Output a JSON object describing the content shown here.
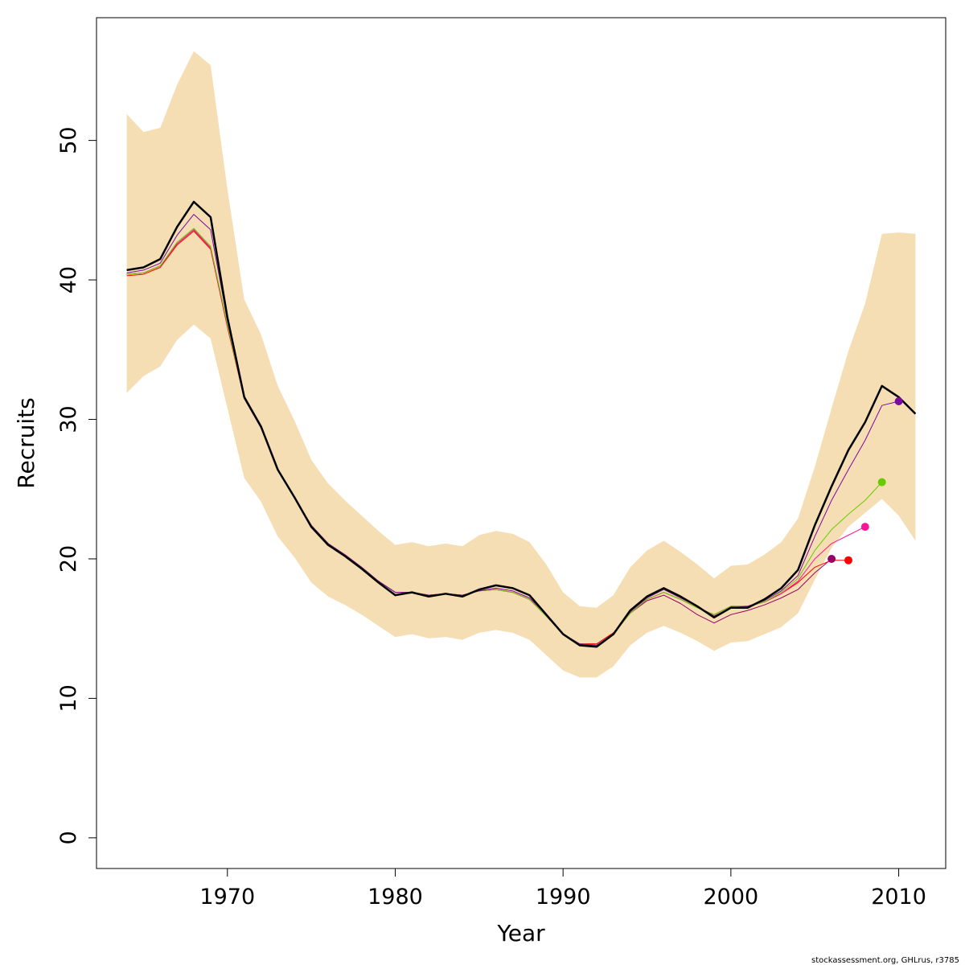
{
  "chart_data": {
    "type": "line",
    "title": "",
    "xlabel": "Year",
    "ylabel": "Recruits",
    "xlim": [
      1962.2,
      2012.8
    ],
    "ylim": [
      -2.2,
      58.8
    ],
    "xticks": [
      1970,
      1980,
      1990,
      2000,
      2010
    ],
    "yticks": [
      0,
      10,
      20,
      30,
      40,
      50
    ],
    "grid": false,
    "legend": "none",
    "colors": {
      "band": "#f5deb3",
      "final": "#000000",
      "peel_2010": "#7b0aa0",
      "peel_2009": "#66cc00",
      "peel_2008": "#ff1493",
      "peel_2007": "#ff0000",
      "peel_2006": "#990066"
    },
    "x": [
      1964,
      1965,
      1966,
      1967,
      1968,
      1969,
      1970,
      1971,
      1972,
      1973,
      1974,
      1975,
      1976,
      1977,
      1978,
      1979,
      1980,
      1981,
      1982,
      1983,
      1984,
      1985,
      1986,
      1987,
      1988,
      1989,
      1990,
      1991,
      1992,
      1993,
      1994,
      1995,
      1996,
      1997,
      1998,
      1999,
      2000,
      2001,
      2002,
      2003,
      2004,
      2005,
      2006,
      2007,
      2008,
      2009,
      2010,
      2011
    ],
    "band_upper": [
      51.9,
      50.6,
      50.9,
      54.0,
      56.4,
      55.4,
      46.5,
      38.6,
      36.1,
      32.4,
      29.9,
      27.1,
      25.4,
      24.2,
      23.1,
      22.0,
      21.0,
      21.2,
      20.9,
      21.1,
      20.9,
      21.7,
      22.0,
      21.8,
      21.2,
      19.6,
      17.6,
      16.6,
      16.5,
      17.4,
      19.4,
      20.6,
      21.3,
      20.5,
      19.6,
      18.6,
      19.5,
      19.6,
      20.3,
      21.2,
      22.9,
      26.6,
      30.8,
      34.9,
      38.3,
      43.3,
      43.4,
      43.3
    ],
    "band_lower": [
      31.9,
      33.1,
      33.8,
      35.7,
      36.8,
      35.8,
      30.8,
      25.8,
      24.1,
      21.6,
      20.1,
      18.3,
      17.3,
      16.7,
      16.0,
      15.2,
      14.4,
      14.6,
      14.3,
      14.4,
      14.2,
      14.7,
      14.9,
      14.7,
      14.2,
      13.1,
      12.0,
      11.5,
      11.5,
      12.3,
      13.8,
      14.7,
      15.2,
      14.7,
      14.1,
      13.4,
      14.0,
      14.1,
      14.6,
      15.1,
      16.1,
      18.5,
      20.8,
      22.3,
      23.3,
      24.3,
      23.1,
      21.3
    ],
    "series": [
      {
        "name": "",
        "color": "#000000",
        "width": 2.5,
        "end_marker": false,
        "x": [
          1964,
          1965,
          1966,
          1967,
          1968,
          1969,
          1970,
          1971,
          1972,
          1973,
          1974,
          1975,
          1976,
          1977,
          1978,
          1979,
          1980,
          1981,
          1982,
          1983,
          1984,
          1985,
          1986,
          1987,
          1988,
          1989,
          1990,
          1991,
          1992,
          1993,
          1994,
          1995,
          1996,
          1997,
          1998,
          1999,
          2000,
          2001,
          2002,
          2003,
          2004,
          2005,
          2006,
          2007,
          2008,
          2009,
          2010,
          2011
        ],
        "values": [
          40.7,
          40.9,
          41.5,
          43.8,
          45.6,
          44.5,
          37.3,
          31.6,
          29.5,
          26.4,
          24.4,
          22.3,
          21.0,
          20.2,
          19.3,
          18.3,
          17.4,
          17.6,
          17.3,
          17.5,
          17.3,
          17.8,
          18.1,
          17.9,
          17.4,
          16.0,
          14.6,
          13.8,
          13.7,
          14.6,
          16.3,
          17.3,
          17.9,
          17.3,
          16.6,
          15.8,
          16.5,
          16.5,
          17.1,
          17.9,
          19.2,
          22.4,
          25.2,
          27.8,
          29.8,
          32.4,
          31.6,
          30.4
        ]
      },
      {
        "name": "",
        "color": "#7b0aa0",
        "width": 1,
        "end_marker": true,
        "x": [
          1964,
          1965,
          1966,
          1967,
          1968,
          1969,
          1970,
          1971,
          1972,
          1973,
          1974,
          1975,
          1976,
          1977,
          1978,
          1979,
          1980,
          1981,
          1982,
          1983,
          1984,
          1985,
          1986,
          1987,
          1988,
          1989,
          1990,
          1991,
          1992,
          1993,
          1994,
          1995,
          1996,
          1997,
          1998,
          1999,
          2000,
          2001,
          2002,
          2003,
          2004,
          2005,
          2006,
          2007,
          2008,
          2009,
          2010
        ],
        "values": [
          40.5,
          40.7,
          41.2,
          43.2,
          44.7,
          43.6,
          37.1,
          31.5,
          29.4,
          26.4,
          24.4,
          22.4,
          21.1,
          20.3,
          19.4,
          18.4,
          17.6,
          17.6,
          17.4,
          17.5,
          17.4,
          17.7,
          17.9,
          17.7,
          17.2,
          16.0,
          14.6,
          13.9,
          13.8,
          14.6,
          16.2,
          17.2,
          17.8,
          17.2,
          16.6,
          15.9,
          16.5,
          16.6,
          17.0,
          17.7,
          18.8,
          21.6,
          24.2,
          26.4,
          28.5,
          31.0,
          31.3
        ]
      },
      {
        "name": "",
        "color": "#66cc00",
        "width": 1,
        "end_marker": true,
        "x": [
          1964,
          1965,
          1966,
          1967,
          1968,
          1969,
          1970,
          1971,
          1972,
          1973,
          1974,
          1975,
          1976,
          1977,
          1978,
          1979,
          1980,
          1981,
          1982,
          1983,
          1984,
          1985,
          1986,
          1987,
          1988,
          1989,
          1990,
          1991,
          1992,
          1993,
          1994,
          1995,
          1996,
          1997,
          1998,
          1999,
          2000,
          2001,
          2002,
          2003,
          2004,
          2005,
          2006,
          2007,
          2008,
          2009
        ],
        "values": [
          40.4,
          40.5,
          41.0,
          42.7,
          43.7,
          42.4,
          36.8,
          31.5,
          29.4,
          26.4,
          24.4,
          22.4,
          21.1,
          20.3,
          19.4,
          18.4,
          17.6,
          17.6,
          17.4,
          17.5,
          17.4,
          17.7,
          17.8,
          17.6,
          17.1,
          15.9,
          14.6,
          13.9,
          13.8,
          14.6,
          16.1,
          17.1,
          17.6,
          17.1,
          16.5,
          16.0,
          16.6,
          16.6,
          16.9,
          17.6,
          18.6,
          20.6,
          22.1,
          23.2,
          24.2,
          25.5
        ]
      },
      {
        "name": "",
        "color": "#ff1493",
        "width": 1,
        "end_marker": true,
        "x": [
          1964,
          1965,
          1966,
          1967,
          1968,
          1969,
          1970,
          1971,
          1972,
          1973,
          1974,
          1975,
          1976,
          1977,
          1978,
          1979,
          1980,
          1981,
          1982,
          1983,
          1984,
          1985,
          1986,
          1987,
          1988,
          1989,
          1990,
          1991,
          1992,
          1993,
          1994,
          1995,
          1996,
          1997,
          1998,
          1999,
          2000,
          2001,
          2002,
          2003,
          2004,
          2005,
          2006,
          2007,
          2008
        ],
        "values": [
          40.4,
          40.5,
          41.0,
          42.6,
          43.6,
          42.3,
          36.7,
          31.5,
          29.4,
          26.4,
          24.4,
          22.4,
          21.1,
          20.3,
          19.4,
          18.4,
          17.6,
          17.6,
          17.4,
          17.5,
          17.4,
          17.7,
          17.8,
          17.6,
          17.1,
          15.9,
          14.6,
          13.9,
          13.8,
          14.6,
          16.1,
          17.1,
          17.6,
          17.1,
          16.5,
          16.0,
          16.6,
          16.6,
          16.9,
          17.5,
          18.4,
          20.0,
          21.1,
          21.7,
          22.3
        ]
      },
      {
        "name": "",
        "color": "#ff0000",
        "width": 1,
        "end_marker": true,
        "x": [
          1964,
          1965,
          1966,
          1967,
          1968,
          1969,
          1970,
          1971,
          1972,
          1973,
          1974,
          1975,
          1976,
          1977,
          1978,
          1979,
          1980,
          1981,
          1982,
          1983,
          1984,
          1985,
          1986,
          1987,
          1988,
          1989,
          1990,
          1991,
          1992,
          1993,
          1994,
          1995,
          1996,
          1997,
          1998,
          1999,
          2000,
          2001,
          2002,
          2003,
          2004,
          2005,
          2006,
          2007
        ],
        "values": [
          40.3,
          40.4,
          40.9,
          42.5,
          43.5,
          42.2,
          36.6,
          31.5,
          29.4,
          26.4,
          24.4,
          22.4,
          21.1,
          20.3,
          19.4,
          18.4,
          17.6,
          17.6,
          17.4,
          17.5,
          17.4,
          17.7,
          17.8,
          17.6,
          17.1,
          15.9,
          14.6,
          13.9,
          13.9,
          14.7,
          16.1,
          17.1,
          17.6,
          17.1,
          16.5,
          16.0,
          16.6,
          16.6,
          16.9,
          17.5,
          18.3,
          19.4,
          19.9,
          19.9
        ]
      },
      {
        "name": "",
        "color": "#990066",
        "width": 1,
        "end_marker": true,
        "x": [
          1964,
          1965,
          1966,
          1967,
          1968,
          1969,
          1970,
          1971,
          1972,
          1973,
          1974,
          1975,
          1976,
          1977,
          1978,
          1979,
          1980,
          1981,
          1982,
          1983,
          1984,
          1985,
          1986,
          1987,
          1988,
          1989,
          1990,
          1991,
          1992,
          1993,
          1994,
          1995,
          1996,
          1997,
          1998,
          1999,
          2000,
          2001,
          2002,
          2003,
          2004,
          2005,
          2006
        ],
        "values": [
          40.4,
          40.5,
          41.0,
          42.6,
          43.6,
          42.3,
          36.7,
          31.5,
          29.4,
          26.4,
          24.4,
          22.4,
          21.1,
          20.3,
          19.4,
          18.4,
          17.6,
          17.6,
          17.4,
          17.5,
          17.4,
          17.7,
          17.8,
          17.6,
          17.1,
          15.9,
          14.6,
          13.9,
          13.9,
          14.7,
          16.1,
          17.0,
          17.4,
          16.8,
          16.0,
          15.4,
          16.0,
          16.3,
          16.7,
          17.2,
          17.8,
          19.0,
          20.0
        ]
      }
    ]
  },
  "footer": {
    "credit": "stockassessment.org, GHLrus, r3785"
  }
}
